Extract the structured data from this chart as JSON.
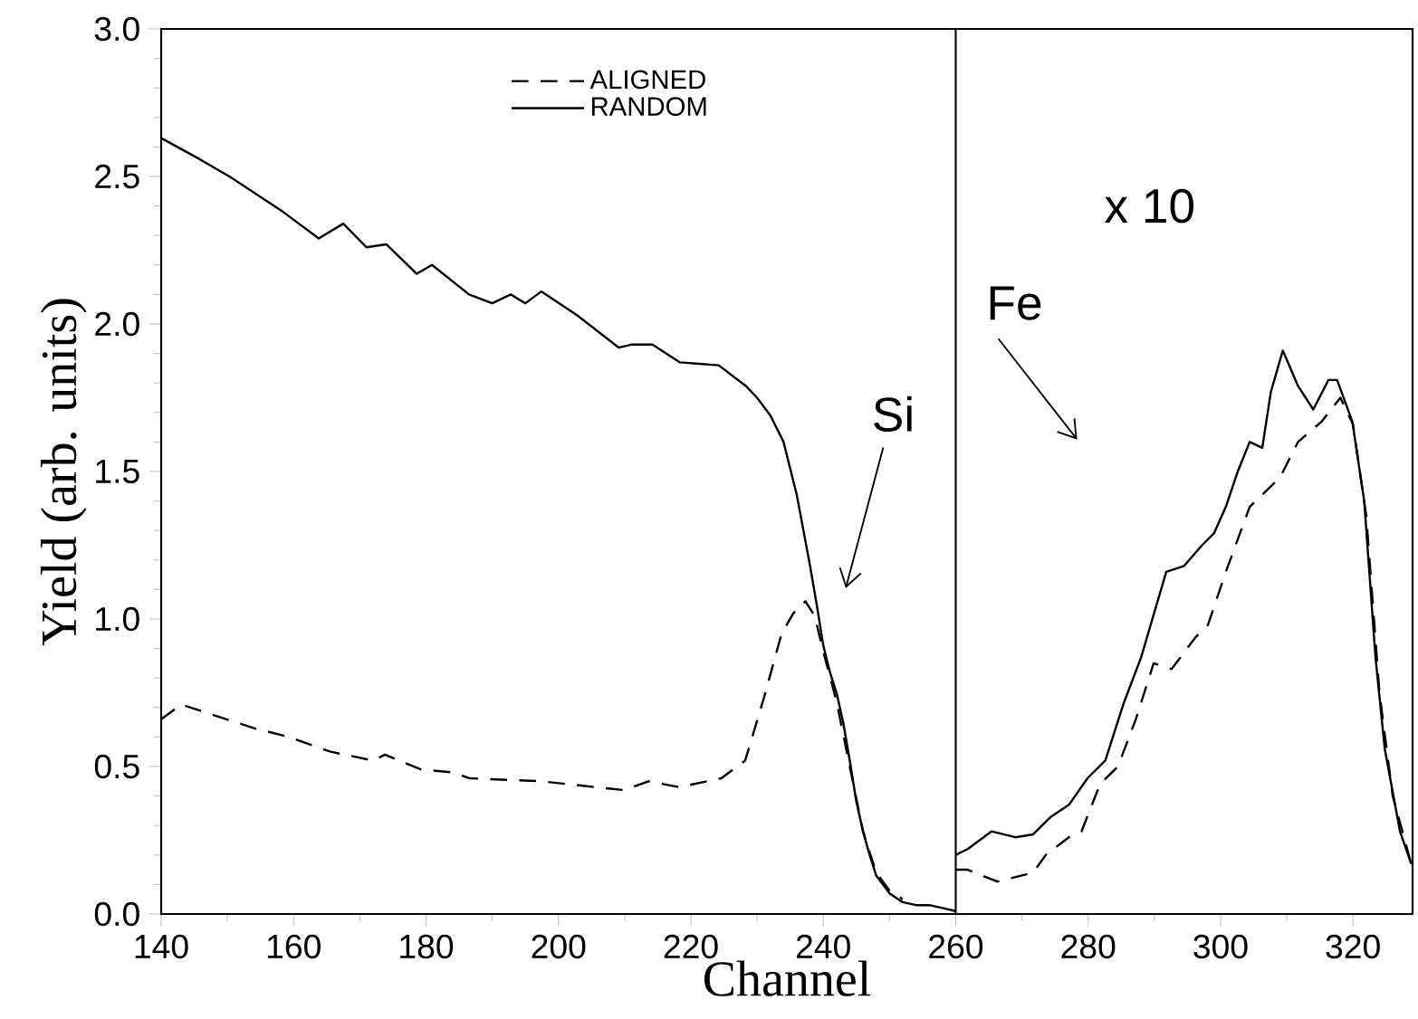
{
  "chart_data": {
    "type": "line",
    "xlabel": "Channel",
    "ylabel": "Yield (arb. units)",
    "xlim": [
      140,
      329
    ],
    "ylim": [
      0,
      3
    ],
    "xticks": [
      140,
      160,
      180,
      200,
      220,
      240,
      260,
      280,
      300,
      320
    ],
    "yticks": [
      {
        "value": 0,
        "label": "0.0"
      },
      {
        "value": 0.5,
        "label": "0.5"
      },
      {
        "value": 1,
        "label": "1.0"
      },
      {
        "value": 1.5,
        "label": "1.5"
      },
      {
        "value": 2,
        "label": "2.0"
      },
      {
        "value": 2.5,
        "label": "2.5"
      },
      {
        "value": 3,
        "label": "3.0"
      }
    ],
    "grid": false,
    "legend": "top",
    "marker": "none",
    "series": [
      {
        "name": "ALIGNED",
        "color": "#000000",
        "line_style": "dashed",
        "x": [
          140,
          143,
          154,
          159.3,
          165.6,
          172,
          173.8,
          179.2,
          184,
          186.6,
          197.4,
          205.6,
          210,
          213.6,
          218.2,
          224.6,
          228.2,
          231,
          233.7,
          235.5,
          237.3,
          238.7,
          240,
          242,
          244,
          246,
          248,
          250,
          252,
          null,
          260,
          261.8,
          266.3,
          271.7,
          273.6,
          277.1,
          279,
          281.8,
          284.5,
          287.2,
          289.9,
          292.6,
          296.3,
          298.1,
          300.8,
          304.4,
          309,
          311.7,
          315.3,
          318.1,
          320,
          322,
          324,
          326,
          328.8
        ],
        "values": [
          0.66,
          0.71,
          0.63,
          0.6,
          0.55,
          0.52,
          0.54,
          0.49,
          0.48,
          0.46,
          0.45,
          0.43,
          0.42,
          0.45,
          0.43,
          0.46,
          0.52,
          0.73,
          0.95,
          1.02,
          1.06,
          1.01,
          0.89,
          0.72,
          0.5,
          0.28,
          0.14,
          0.08,
          0.05,
          null,
          0.15,
          0.15,
          0.11,
          0.14,
          0.2,
          0.26,
          0.28,
          0.44,
          0.5,
          0.66,
          0.85,
          0.83,
          0.94,
          0.98,
          1.16,
          1.38,
          1.48,
          1.6,
          1.67,
          1.75,
          1.66,
          1.35,
          0.75,
          0.4,
          0.17
        ]
      },
      {
        "name": "RANDOM",
        "color": "#000000",
        "line_style": "solid",
        "x": [
          140,
          145.7,
          150.3,
          158.4,
          163.8,
          167.5,
          171,
          174,
          178.6,
          180.9,
          186.5,
          190,
          192.8,
          195,
          197.4,
          202.8,
          209.1,
          211,
          214.2,
          218.3,
          224.2,
          228.3,
          230,
          232,
          234,
          236,
          238,
          239,
          240,
          241,
          242,
          243,
          244,
          245,
          246,
          247,
          248,
          250,
          252,
          254,
          256,
          258,
          260,
          null,
          260,
          261.8,
          265.4,
          269,
          271.7,
          274.4,
          277.1,
          279.9,
          282.6,
          285.3,
          288,
          291.8,
          294.5,
          297.2,
          299,
          300.8,
          302.6,
          304.4,
          306.3,
          307.6,
          309.4,
          311.7,
          314,
          316.3,
          317.6,
          319.9,
          321.7,
          323.4,
          324.8,
          327.1,
          328.8
        ],
        "values": [
          2.63,
          2.56,
          2.5,
          2.38,
          2.29,
          2.34,
          2.26,
          2.27,
          2.17,
          2.2,
          2.1,
          2.07,
          2.1,
          2.07,
          2.11,
          2.03,
          1.92,
          1.93,
          1.93,
          1.87,
          1.86,
          1.79,
          1.75,
          1.69,
          1.6,
          1.42,
          1.18,
          1.05,
          0.91,
          0.82,
          0.75,
          0.65,
          0.52,
          0.38,
          0.28,
          0.2,
          0.13,
          0.07,
          0.04,
          0.03,
          0.03,
          0.02,
          0.01,
          null,
          0.2,
          0.22,
          0.28,
          0.26,
          0.27,
          0.33,
          0.37,
          0.46,
          0.52,
          0.71,
          0.87,
          1.16,
          1.18,
          1.25,
          1.29,
          1.38,
          1.5,
          1.6,
          1.58,
          1.77,
          1.91,
          1.79,
          1.71,
          1.81,
          1.81,
          1.67,
          1.4,
          0.87,
          0.56,
          0.28,
          0.17
        ]
      }
    ],
    "ref_lines": [
      {
        "axis": "x",
        "value": 260,
        "color": "#000000",
        "line_style": "solid"
      }
    ],
    "annotations": [
      "Si",
      "Fe",
      "x 10"
    ]
  }
}
